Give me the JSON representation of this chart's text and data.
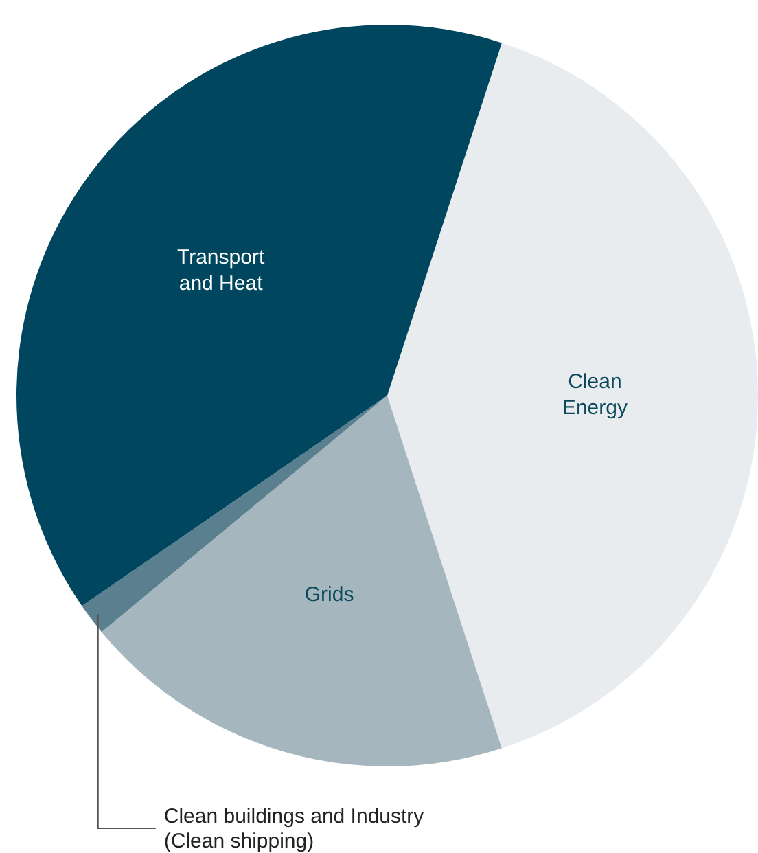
{
  "chart_data": {
    "type": "pie",
    "categories": [
      "Clean Energy",
      "Grids",
      "Clean buildings and Industry (Clean shipping)",
      "Transport and Heat"
    ],
    "values": [
      40,
      19,
      1.4,
      39.6
    ],
    "colors": [
      "#e8ecef",
      "#a5b6bf",
      "#5a7f8e",
      "#00465e"
    ],
    "legend": false
  }
}
